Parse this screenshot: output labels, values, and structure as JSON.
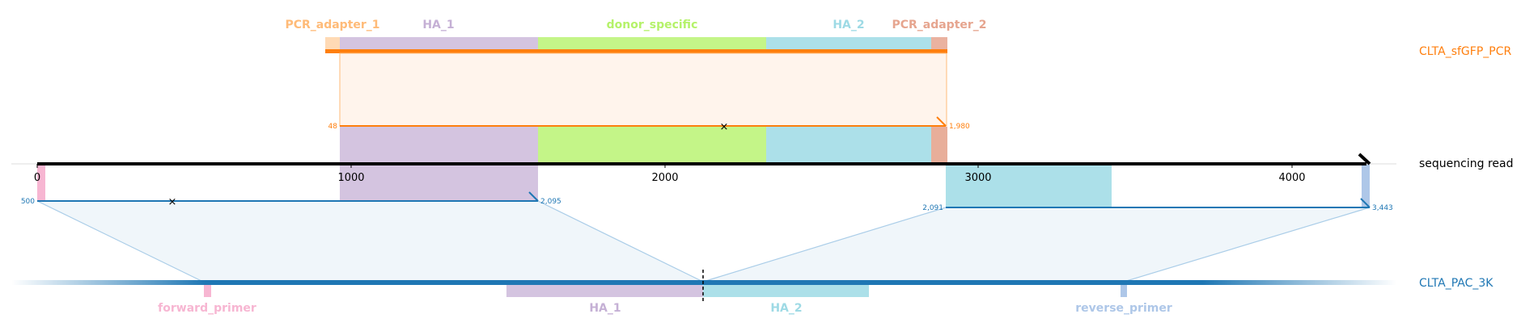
{
  "tracks": {
    "pcr": {
      "label": "CLTA_sfGFP_PCR",
      "color": "#ff7f0e",
      "start": 48,
      "end": 1980
    },
    "read": {
      "label": "sequencing read",
      "color": "#000000",
      "length": 4260,
      "ticks": [
        0,
        1000,
        2000,
        3000,
        4000
      ]
    },
    "plasmid": {
      "label": "CLTA_PAC_3K",
      "color": "#1f77b4"
    }
  },
  "pcr_features": [
    {
      "name": "PCR_adapter_1",
      "color": "#ffbb78",
      "start": 0,
      "end": 48
    },
    {
      "name": "HA_1",
      "color": "#c5b0d5",
      "start": 48,
      "end": 630
    },
    {
      "name": "donor_specific",
      "color": "#b5f26a",
      "start": 630,
      "end": 1360
    },
    {
      "name": "HA_2",
      "color": "#9edae5",
      "start": 1360,
      "end": 1880
    },
    {
      "name": "PCR_adapter_2",
      "color": "#e6a58f",
      "start": 1880,
      "end": 1930
    }
  ],
  "plasmid_features": [
    {
      "name": "forward_primer",
      "color": "#f7b6d2"
    },
    {
      "name": "HA_1",
      "color": "#c5b0d5"
    },
    {
      "name": "HA_2",
      "color": "#9edae5"
    },
    {
      "name": "reverse_primer",
      "color": "#aec7e8"
    }
  ],
  "alignments": [
    {
      "target": "pcr",
      "query_start": 48,
      "query_end": 1980
    },
    {
      "target": "plasmid",
      "query_start": 500,
      "query_end": 2095
    },
    {
      "target": "plasmid",
      "query_start": 2091,
      "query_end": 3443
    }
  ]
}
